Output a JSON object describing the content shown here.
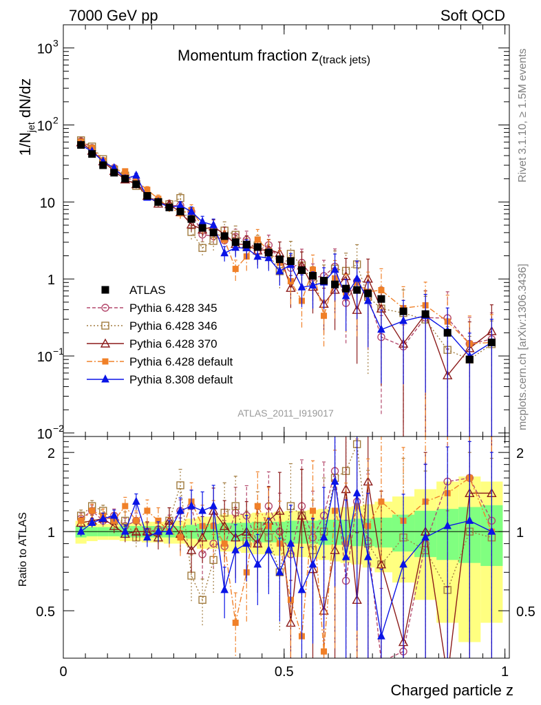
{
  "header": {
    "energy": "7000 GeV pp",
    "process": "Soft QCD"
  },
  "side_labels": {
    "rivet": "Rivet 3.1.10, ≥ 1.5M events",
    "mcplots": "mcplots.cern.ch [arXiv:1306.3436]"
  },
  "chart_data": {
    "type": "scatter",
    "title_main": "Momentum fraction ",
    "title_var": "z",
    "title_sub": "(track jets)",
    "analysis_tag": "ATLAS_2011_I919017",
    "ylabel_main": "1/N",
    "ylabel_sub": "jet",
    "ylabel_tail": " dN/dz",
    "ratio_ylabel": "Ratio to ATLAS",
    "xlabel": "Charged particle z",
    "xlim": [
      0,
      1.01
    ],
    "ylim_log": [
      0.009,
      2000
    ],
    "ratio_ylim": [
      0.33,
      2.3
    ],
    "x_ticks": [
      {
        "v": 0,
        "label": "0"
      },
      {
        "v": 0.5,
        "label": "0.5"
      },
      {
        "v": 1,
        "label": "1"
      }
    ],
    "y_ticks": [
      {
        "v": 0.01,
        "base": "10",
        "exp": "−2"
      },
      {
        "v": 0.1,
        "base": "10",
        "exp": "−1"
      },
      {
        "v": 1,
        "base": "1",
        "exp": ""
      },
      {
        "v": 10,
        "base": "10",
        "exp": ""
      },
      {
        "v": 100,
        "base": "10",
        "exp": "2"
      },
      {
        "v": 1000,
        "base": "10",
        "exp": "3"
      }
    ],
    "ratio_ticks": [
      {
        "v": 0.5,
        "label": "0.5"
      },
      {
        "v": 1,
        "label": "1"
      },
      {
        "v": 2,
        "label": "2"
      }
    ],
    "x": [
      0.04,
      0.065,
      0.09,
      0.115,
      0.14,
      0.165,
      0.19,
      0.215,
      0.24,
      0.265,
      0.29,
      0.315,
      0.34,
      0.365,
      0.39,
      0.415,
      0.44,
      0.465,
      0.49,
      0.515,
      0.54,
      0.565,
      0.59,
      0.615,
      0.64,
      0.665,
      0.69,
      0.72,
      0.77,
      0.82,
      0.87,
      0.92,
      0.97
    ],
    "reference": {
      "name": "ATLAS",
      "values": [
        55,
        42,
        30,
        24,
        20,
        17,
        12,
        10,
        8.5,
        7.5,
        6,
        4.6,
        4,
        3.6,
        3,
        2.8,
        2.6,
        2.2,
        1.8,
        1.7,
        1.3,
        1.1,
        0.95,
        0.85,
        0.75,
        0.72,
        0.65,
        0.55,
        0.38,
        0.35,
        0.2,
        0.09,
        0.15
      ]
    },
    "band_inner": [
      0.05,
      0.04,
      0.04,
      0.04,
      0.05,
      0.05,
      0.05,
      0.05,
      0.05,
      0.05,
      0.06,
      0.07,
      0.07,
      0.08,
      0.08,
      0.08,
      0.09,
      0.09,
      0.09,
      0.1,
      0.1,
      0.1,
      0.11,
      0.11,
      0.11,
      0.12,
      0.12,
      0.13,
      0.16,
      0.2,
      0.22,
      0.24,
      0.26
    ],
    "band_outer": [
      0.1,
      0.08,
      0.07,
      0.07,
      0.08,
      0.08,
      0.09,
      0.09,
      0.1,
      0.1,
      0.12,
      0.14,
      0.14,
      0.16,
      0.16,
      0.17,
      0.18,
      0.18,
      0.19,
      0.2,
      0.2,
      0.21,
      0.22,
      0.23,
      0.24,
      0.25,
      0.27,
      0.3,
      0.36,
      0.45,
      0.55,
      0.62,
      0.55
    ],
    "series": [
      {
        "name": "Pythia 6.428 345",
        "color": "#b3476b",
        "marker": "circle",
        "dash": "5,3",
        "ratio": [
          1.12,
          1.2,
          1.1,
          1.15,
          1.05,
          1.1,
          1.0,
          1.02,
          1.05,
          1.2,
          1.25,
          0.82,
          0.9,
          0.88,
          1.18,
          1.15,
          0.9,
          1.25,
          1.0,
          0.82,
          1.25,
          0.95,
          1.15,
          1.7,
          0.65,
          1.3,
          0.92,
          0.32,
          0.35,
          0.9,
          1.55,
          1.6,
          1.1
        ],
        "err": [
          0.05,
          0.05,
          0.05,
          0.06,
          0.07,
          0.07,
          0.08,
          0.09,
          0.1,
          0.1,
          0.15,
          0.2,
          0.2,
          0.25,
          0.25,
          0.3,
          0.3,
          0.35,
          0.4,
          0.45,
          0.5,
          0.5,
          0.6,
          0.7,
          0.7,
          0.8,
          0.8,
          0.9,
          0.9,
          1.0,
          1.2,
          1.2,
          1.2
        ]
      },
      {
        "name": "Pythia 6.428 346",
        "color": "#a07a3d",
        "marker": "square",
        "dash": "2,3",
        "ratio": [
          1.15,
          1.25,
          1.2,
          1.1,
          1.1,
          0.95,
          1.0,
          1.0,
          1.1,
          1.5,
          0.68,
          0.55,
          0.78,
          1.18,
          1.25,
          0.92,
          1.05,
          0.95,
          0.7,
          1.25,
          1.15,
          0.85,
          1.0,
          1.6,
          1.7,
          2.15,
          0.9,
          0.75,
          0.95,
          0.85,
          0.6,
          1.0,
          0.95
        ],
        "err": [
          0.05,
          0.05,
          0.05,
          0.06,
          0.08,
          0.08,
          0.09,
          0.1,
          0.12,
          0.15,
          0.2,
          0.2,
          0.25,
          0.3,
          0.3,
          0.3,
          0.35,
          0.35,
          0.4,
          0.45,
          0.5,
          0.55,
          0.6,
          0.7,
          0.7,
          0.8,
          0.9,
          0.9,
          1.0,
          1.0,
          1.0,
          1.0,
          1.0
        ]
      },
      {
        "name": "Pythia 6.428 370",
        "color": "#8b1a1a",
        "marker": "triangle",
        "dash": "",
        "ratio": [
          1.08,
          1.1,
          1.12,
          1.05,
          0.98,
          1.0,
          1.0,
          0.95,
          1.1,
          0.98,
          0.85,
          0.95,
          1.2,
          1.05,
          0.95,
          1.0,
          0.9,
          1.1,
          1.2,
          0.45,
          1.15,
          0.72,
          0.5,
          0.85,
          1.45,
          0.55,
          1.55,
          0.75,
          0.38,
          1.0,
          0.28,
          1.4,
          1.4
        ],
        "err": [
          0.05,
          0.05,
          0.05,
          0.06,
          0.07,
          0.08,
          0.09,
          0.1,
          0.12,
          0.15,
          0.18,
          0.2,
          0.22,
          0.25,
          0.3,
          0.3,
          0.35,
          0.35,
          0.4,
          0.45,
          0.5,
          0.55,
          0.6,
          0.7,
          0.7,
          0.8,
          0.8,
          0.9,
          1.0,
          1.0,
          1.2,
          1.2,
          1.2
        ]
      },
      {
        "name": "Pythia 6.428 default",
        "color": "#f08028",
        "marker": "fsquare",
        "dash": "8,3,2,3",
        "ratio": [
          1.1,
          1.2,
          1.15,
          1.1,
          1.25,
          1.1,
          1.2,
          1.1,
          1.0,
          0.95,
          1.3,
          1.05,
          1.05,
          0.9,
          0.45,
          0.7,
          1.25,
          1.05,
          0.9,
          0.55,
          0.4,
          1.2,
          0.35,
          1.2,
          0.9,
          1.25,
          1.05,
          1.3,
          1.1,
          1.3,
          1.4,
          1.6,
          1.0
        ],
        "err": [
          0.05,
          0.06,
          0.06,
          0.07,
          0.08,
          0.09,
          0.1,
          0.12,
          0.13,
          0.15,
          0.18,
          0.2,
          0.25,
          0.3,
          0.3,
          0.35,
          0.35,
          0.4,
          0.45,
          0.5,
          0.55,
          0.55,
          0.6,
          0.7,
          0.7,
          0.8,
          0.8,
          0.9,
          0.9,
          1.0,
          1.2,
          1.3,
          1.3
        ]
      },
      {
        "name": "Pythia 8.308 default",
        "color": "#0a14e6",
        "marker": "ftriangle",
        "dash": "",
        "ratio": [
          1.0,
          1.08,
          1.12,
          1.15,
          1.0,
          1.3,
          0.95,
          1.0,
          1.0,
          1.2,
          1.25,
          1.2,
          1.25,
          0.6,
          0.85,
          0.9,
          0.75,
          0.85,
          0.7,
          0.9,
          0.6,
          0.75,
          0.95,
          1.55,
          0.8,
          1.4,
          0.8,
          0.4,
          0.75,
          0.95,
          1.05,
          1.1,
          1.0
        ],
        "err": [
          0.04,
          0.04,
          0.05,
          0.05,
          0.06,
          0.07,
          0.08,
          0.09,
          0.1,
          0.12,
          0.15,
          0.18,
          0.2,
          0.22,
          0.25,
          0.28,
          0.3,
          0.32,
          0.35,
          0.4,
          0.45,
          0.5,
          0.55,
          0.6,
          0.65,
          0.7,
          0.75,
          0.8,
          0.85,
          0.9,
          1.0,
          1.0,
          1.0
        ]
      }
    ]
  }
}
